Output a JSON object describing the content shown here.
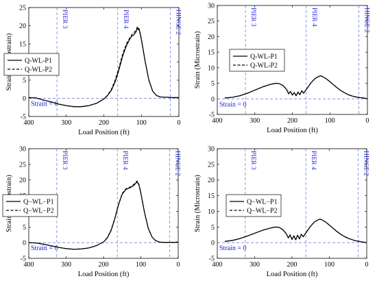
{
  "chart_data": [
    {
      "type": "line",
      "xlabel": "Load Position (ft)",
      "ylabel": "Strain (Microstrain)",
      "xlim": [
        400,
        0
      ],
      "ylim": [
        -5,
        25
      ],
      "xticks": [
        400,
        300,
        200,
        100,
        0
      ],
      "yticks": [
        -5,
        0,
        5,
        10,
        15,
        20,
        25
      ],
      "grid": false,
      "legend_position": "center-left",
      "reference_lines": [
        {
          "label": "PIER 3",
          "x": 325
        },
        {
          "label": "PIER 4",
          "x": 163
        },
        {
          "label": "HINGE 2",
          "x": 23
        }
      ],
      "zero_line_label": "Strain = 0",
      "series": [
        {
          "name": "Q-WL-P1",
          "style": "solid",
          "x": [
            400,
            380,
            360,
            340,
            320,
            300,
            280,
            260,
            240,
            220,
            200,
            190,
            180,
            170,
            160,
            150,
            140,
            130,
            125,
            120,
            115,
            110,
            105,
            100,
            95,
            90,
            80,
            70,
            60,
            50,
            40,
            30,
            20,
            10,
            0
          ],
          "y": [
            0.2,
            0.1,
            -0.5,
            -1.0,
            -1.6,
            -2.0,
            -2.3,
            -2.3,
            -2.0,
            -1.4,
            -0.2,
            0.8,
            2.2,
            4.5,
            7.8,
            11.6,
            14.5,
            16.5,
            17.2,
            17.5,
            18.2,
            19.3,
            18.6,
            16.2,
            13.2,
            10.2,
            5.0,
            2.0,
            0.8,
            0.4,
            0.3,
            0.3,
            0.2,
            0.2,
            0.2
          ]
        },
        {
          "name": "Q-WL-P2",
          "style": "dashed",
          "x": [
            400,
            380,
            360,
            340,
            320,
            300,
            280,
            260,
            240,
            220,
            200,
            190,
            180,
            170,
            160,
            150,
            140,
            130,
            125,
            120,
            115,
            110,
            105,
            100,
            95,
            90,
            80,
            70,
            60,
            50,
            40,
            30,
            20,
            10,
            0
          ],
          "y": [
            0.2,
            0.1,
            -0.5,
            -1.0,
            -1.6,
            -2.0,
            -2.3,
            -2.3,
            -2.0,
            -1.4,
            -0.2,
            0.9,
            2.5,
            5.0,
            8.4,
            12.2,
            15.0,
            16.8,
            17.6,
            18.0,
            18.8,
            19.8,
            18.9,
            16.4,
            13.3,
            10.3,
            5.0,
            2.0,
            0.8,
            0.4,
            0.3,
            0.3,
            0.2,
            0.2,
            0.2
          ]
        }
      ]
    },
    {
      "type": "line",
      "xlabel": "Load Position (ft)",
      "ylabel": "Strain (Microstrain)",
      "xlim": [
        400,
        0
      ],
      "ylim": [
        -5,
        30
      ],
      "xticks": [
        400,
        300,
        200,
        100,
        0
      ],
      "yticks": [
        -5,
        0,
        5,
        10,
        15,
        20,
        25,
        30
      ],
      "grid": false,
      "legend_position": "top-center",
      "reference_lines": [
        {
          "label": "PIER 3",
          "x": 325
        },
        {
          "label": "PIER 4",
          "x": 163
        },
        {
          "label": "HINGE 2",
          "x": 23
        }
      ],
      "zero_line_label": "Strain = 0",
      "series": [
        {
          "name": "Q-WL-P1",
          "style": "solid",
          "x": [
            380,
            360,
            340,
            320,
            300,
            280,
            260,
            245,
            235,
            225,
            215,
            210,
            205,
            200,
            195,
            190,
            185,
            180,
            175,
            170,
            160,
            150,
            140,
            130,
            125,
            120,
            110,
            100,
            90,
            80,
            70,
            60,
            50,
            40,
            30,
            20,
            10,
            0
          ],
          "y": [
            0.3,
            0.5,
            1.0,
            1.8,
            2.8,
            3.8,
            4.6,
            5.0,
            4.9,
            4.3,
            3.0,
            1.6,
            2.4,
            1.2,
            2.0,
            1.0,
            2.2,
            1.3,
            2.6,
            1.8,
            3.5,
            5.2,
            6.5,
            7.2,
            7.4,
            7.2,
            6.5,
            5.5,
            4.5,
            3.5,
            2.6,
            1.9,
            1.3,
            0.9,
            0.6,
            0.4,
            0.3,
            0.0
          ]
        },
        {
          "name": "Q-WL-P2",
          "style": "dashed",
          "x": [
            380,
            360,
            340,
            320,
            300,
            280,
            260,
            245,
            235,
            225,
            215,
            210,
            205,
            200,
            195,
            190,
            185,
            180,
            175,
            170,
            160,
            150,
            140,
            130,
            125,
            120,
            110,
            100,
            90,
            80,
            70,
            60,
            50,
            40,
            30,
            20,
            10,
            0
          ],
          "y": [
            0.3,
            0.5,
            1.0,
            1.8,
            2.8,
            3.8,
            4.6,
            5.0,
            4.9,
            4.3,
            3.0,
            1.7,
            2.3,
            1.3,
            2.0,
            1.1,
            2.1,
            1.4,
            2.5,
            1.9,
            3.5,
            5.2,
            6.5,
            7.2,
            7.4,
            7.2,
            6.5,
            5.5,
            4.5,
            3.5,
            2.6,
            1.9,
            1.3,
            0.9,
            0.6,
            0.4,
            0.3,
            0.0
          ]
        }
      ]
    },
    {
      "type": "line",
      "xlabel": "Load Position (ft)",
      "ylabel": "Strain (Microstrain)",
      "xlim": [
        400,
        0
      ],
      "ylim": [
        -5,
        30
      ],
      "xticks": [
        400,
        300,
        200,
        100,
        0
      ],
      "yticks": [
        -5,
        0,
        5,
        10,
        15,
        20,
        25,
        30
      ],
      "grid": false,
      "legend_position": "center-left",
      "reference_lines": [
        {
          "label": "PIER 3",
          "x": 325
        },
        {
          "label": "PIER 4",
          "x": 163
        },
        {
          "label": "HINGE 2",
          "x": 23
        }
      ],
      "zero_line_label": "Strain = 0",
      "series": [
        {
          "name": "Q−WL−P1",
          "style": "solid",
          "x": [
            400,
            380,
            360,
            340,
            320,
            300,
            280,
            260,
            240,
            220,
            200,
            190,
            180,
            170,
            160,
            150,
            140,
            130,
            125,
            120,
            115,
            110,
            105,
            100,
            95,
            90,
            80,
            70,
            60,
            50,
            40,
            30,
            20,
            10,
            0
          ],
          "y": [
            0.0,
            -0.1,
            -0.5,
            -1.0,
            -1.5,
            -1.9,
            -2.1,
            -2.0,
            -1.7,
            -1.0,
            0.2,
            1.5,
            3.8,
            7.5,
            12.0,
            15.5,
            17.0,
            17.5,
            17.8,
            18.2,
            18.8,
            19.4,
            18.4,
            15.8,
            12.6,
            9.5,
            4.5,
            1.8,
            0.6,
            0.2,
            0.1,
            0.1,
            0.1,
            0.1,
            0.2
          ]
        },
        {
          "name": "Q−WL−P2",
          "style": "dashed",
          "x": [
            400,
            380,
            360,
            340,
            320,
            300,
            280,
            260,
            240,
            220,
            200,
            190,
            180,
            170,
            160,
            150,
            140,
            130,
            125,
            120,
            115,
            110,
            105,
            100,
            95,
            90,
            80,
            70,
            60,
            50,
            40,
            30,
            20,
            10,
            0
          ],
          "y": [
            0.0,
            -0.1,
            -0.5,
            -1.0,
            -1.5,
            -1.9,
            -2.1,
            -2.0,
            -1.7,
            -1.0,
            0.2,
            1.6,
            4.0,
            7.7,
            12.2,
            15.7,
            17.2,
            17.7,
            18.0,
            18.5,
            19.1,
            19.7,
            18.6,
            16.0,
            12.7,
            9.6,
            4.5,
            1.8,
            0.6,
            0.2,
            0.1,
            0.1,
            0.1,
            0.1,
            0.2
          ]
        }
      ]
    },
    {
      "type": "line",
      "xlabel": "Load Position (ft)",
      "ylabel": "Strain (Microstrain)",
      "xlim": [
        400,
        0
      ],
      "ylim": [
        -5,
        30
      ],
      "xticks": [
        400,
        300,
        200,
        100,
        0
      ],
      "yticks": [
        -5,
        0,
        5,
        10,
        15,
        20,
        25,
        30
      ],
      "grid": false,
      "legend_position": "top-center",
      "reference_lines": [
        {
          "label": "PIER 3",
          "x": 325
        },
        {
          "label": "PIER 4",
          "x": 163
        },
        {
          "label": "HINGE 2",
          "x": 23
        }
      ],
      "zero_line_label": "Strain = 0",
      "series": [
        {
          "name": "Q−WL−P1",
          "style": "solid",
          "x": [
            380,
            360,
            340,
            320,
            300,
            280,
            260,
            245,
            235,
            225,
            215,
            210,
            205,
            200,
            195,
            190,
            185,
            180,
            175,
            170,
            160,
            150,
            140,
            130,
            125,
            120,
            110,
            100,
            90,
            80,
            70,
            60,
            50,
            40,
            30,
            20,
            10,
            0
          ],
          "y": [
            0.4,
            0.7,
            1.3,
            2.1,
            3.0,
            3.9,
            4.6,
            5.0,
            4.9,
            4.2,
            2.8,
            1.5,
            2.5,
            1.0,
            2.2,
            0.9,
            2.4,
            1.2,
            2.7,
            1.9,
            3.6,
            5.3,
            6.6,
            7.3,
            7.5,
            7.3,
            6.6,
            5.6,
            4.6,
            3.6,
            2.7,
            2.0,
            1.4,
            1.0,
            0.6,
            0.4,
            0.2,
            0.0
          ]
        },
        {
          "name": "Q−WL−P2",
          "style": "dashed",
          "x": [
            380,
            360,
            340,
            320,
            300,
            280,
            260,
            245,
            235,
            225,
            215,
            210,
            205,
            200,
            195,
            190,
            185,
            180,
            175,
            170,
            160,
            150,
            140,
            130,
            125,
            120,
            110,
            100,
            90,
            80,
            70,
            60,
            50,
            40,
            30,
            20,
            10,
            0
          ],
          "y": [
            0.4,
            0.7,
            1.3,
            2.1,
            3.0,
            3.9,
            4.6,
            5.0,
            4.9,
            4.2,
            2.8,
            1.6,
            2.4,
            1.1,
            2.1,
            1.0,
            2.3,
            1.3,
            2.6,
            2.0,
            3.6,
            5.3,
            6.6,
            7.3,
            7.5,
            7.3,
            6.6,
            5.6,
            4.6,
            3.6,
            2.7,
            2.0,
            1.4,
            1.0,
            0.6,
            0.4,
            0.2,
            0.0
          ]
        }
      ]
    }
  ]
}
